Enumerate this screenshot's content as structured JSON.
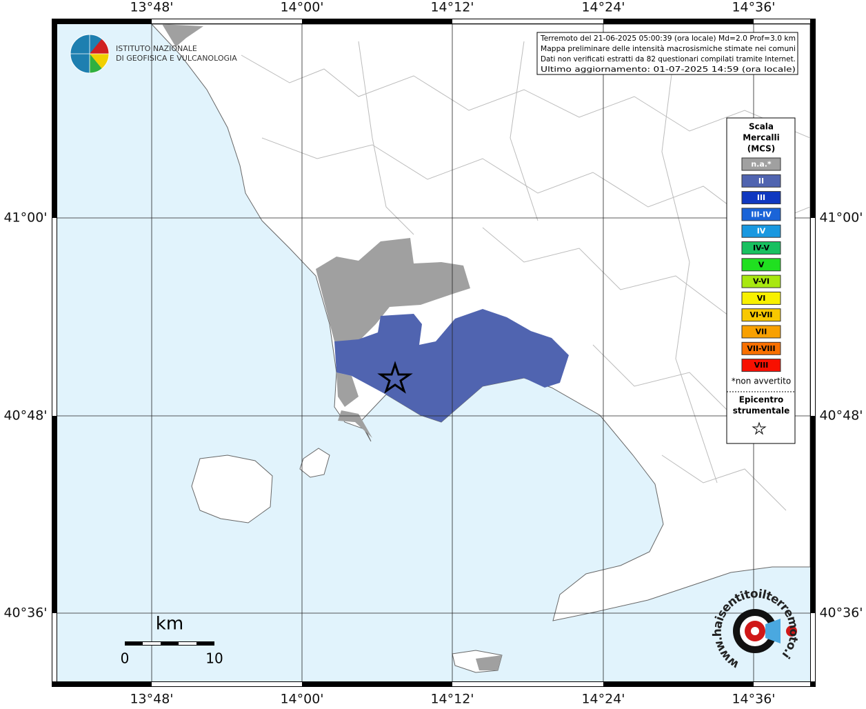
{
  "map": {
    "lon_labels": [
      "13°48'",
      "14°00'",
      "14°12'",
      "14°24'",
      "14°36'"
    ],
    "lat_labels": [
      "41°00'",
      "40°48'",
      "40°36'"
    ]
  },
  "logo": {
    "lines": [
      "ISTITUTO NAZIONALE",
      "DI GEOFISICA E VULCANOLOGIA"
    ]
  },
  "info_box": {
    "lines": [
      "Terremoto del 21-06-2025 05:00:39 (ora locale) Md=2.0 Prof=3.0 km",
      "Mappa preliminare delle intensità macrosismiche stimate nei comuni",
      "Dati non verificati estratti da 82 questionari compilati tramite Internet.",
      "Ultimo aggiornamento: 01-07-2025 14:59 (ora locale)"
    ]
  },
  "legend": {
    "title": [
      "Scala",
      "Mercalli",
      "(MCS)"
    ],
    "items": [
      {
        "label": "n.a.*",
        "color": "#a0a0a0",
        "text_color": "#ffffff"
      },
      {
        "label": "II",
        "color": "#5064b0",
        "text_color": "#ffffff"
      },
      {
        "label": "III",
        "color": "#1038c0",
        "text_color": "#ffffff"
      },
      {
        "label": "III-IV",
        "color": "#1a64d8",
        "text_color": "#ffffff"
      },
      {
        "label": "IV",
        "color": "#1898e0",
        "text_color": "#ffffff"
      },
      {
        "label": "IV-V",
        "color": "#18c060",
        "text_color": "#000000"
      },
      {
        "label": "V",
        "color": "#20e020",
        "text_color": "#000000"
      },
      {
        "label": "V-VI",
        "color": "#a8e810",
        "text_color": "#000000"
      },
      {
        "label": "VI",
        "color": "#f8f000",
        "text_color": "#000000"
      },
      {
        "label": "VI-VII",
        "color": "#f8c800",
        "text_color": "#000000"
      },
      {
        "label": "VII",
        "color": "#f8a000",
        "text_color": "#000000"
      },
      {
        "label": "VII-VIII",
        "color": "#f87000",
        "text_color": "#000000"
      },
      {
        "label": "VIII",
        "color": "#f81000",
        "text_color": "#000000"
      }
    ],
    "note": "*non avvertito",
    "epicenter_title": [
      "Epicentro",
      "strumentale"
    ]
  },
  "scale_bar": {
    "unit": "km",
    "labels": [
      "0",
      "10"
    ]
  },
  "watermark": "www.haisentitoilterremoto.it"
}
